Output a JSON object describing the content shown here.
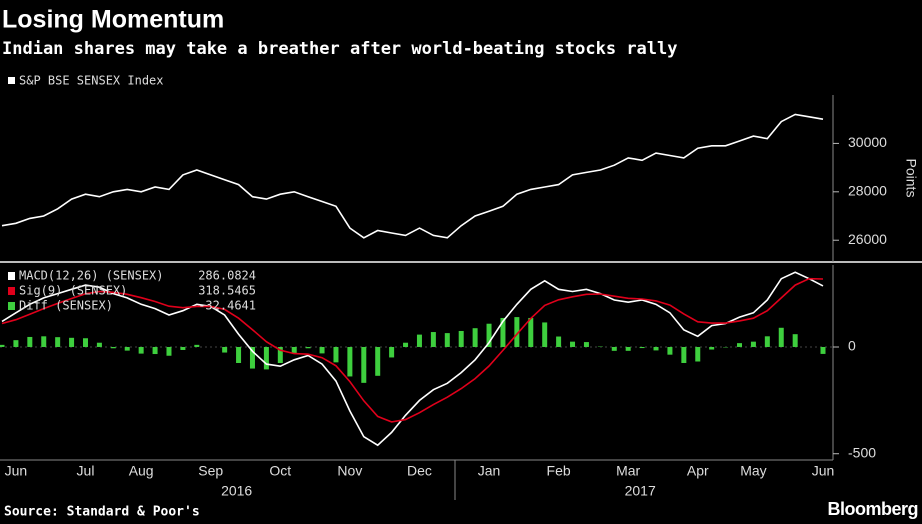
{
  "chart_data": [
    {
      "type": "line",
      "title": "Losing Momentum",
      "subtitle": "Indian shares may take a breather after world-beating stocks rally",
      "categories": [
        null,
        "Jun",
        null,
        null,
        null,
        null,
        "Jul",
        null,
        null,
        null,
        "Aug",
        null,
        null,
        null,
        null,
        "Sep",
        null,
        null,
        null,
        null,
        "Oct",
        null,
        null,
        null,
        null,
        "Nov",
        null,
        null,
        null,
        null,
        "Dec",
        null,
        null,
        null,
        null,
        "Jan",
        null,
        null,
        null,
        null,
        "Feb",
        null,
        null,
        null,
        null,
        "Mar",
        null,
        null,
        null,
        null,
        "Apr",
        null,
        null,
        null,
        "May",
        null,
        null,
        null,
        null,
        "Jun"
      ],
      "years": [
        "2016",
        "2017"
      ],
      "series": [
        {
          "name": "S&P BSE SENSEX Index",
          "color": "#ffffff",
          "values": [
            26600,
            26700,
            26900,
            27000,
            27300,
            27700,
            27900,
            27800,
            28000,
            28100,
            28000,
            28200,
            28100,
            28700,
            28900,
            28700,
            28500,
            28300,
            27800,
            27700,
            27900,
            28000,
            27800,
            27600,
            27400,
            26500,
            26100,
            26400,
            26300,
            26200,
            26500,
            26200,
            26100,
            26600,
            27000,
            27200,
            27400,
            27900,
            28100,
            28200,
            28300,
            28700,
            28800,
            28900,
            29100,
            29400,
            29300,
            29600,
            29500,
            29400,
            29800,
            29900,
            29900,
            30100,
            30300,
            30200,
            30900,
            31200,
            31100,
            31000
          ]
        }
      ],
      "ylim": [
        25100,
        32000
      ],
      "yticks": [
        26000,
        28000,
        30000
      ],
      "ylabel": "Points",
      "source": "Source: Standard & Poor's",
      "brand": "Bloomberg"
    },
    {
      "type": "line",
      "series": [
        {
          "name": "MACD(12,26) (SENSEX)",
          "color": "#ffffff",
          "type": "line",
          "last_value": 286.0824,
          "values": [
            120,
            160,
            200,
            230,
            250,
            270,
            290,
            280,
            250,
            230,
            200,
            180,
            150,
            170,
            200,
            190,
            150,
            60,
            -20,
            -80,
            -90,
            -60,
            -40,
            -80,
            -160,
            -300,
            -420,
            -460,
            -400,
            -320,
            -250,
            -200,
            -170,
            -120,
            -60,
            20,
            120,
            200,
            270,
            310,
            270,
            260,
            270,
            250,
            220,
            210,
            220,
            200,
            160,
            80,
            50,
            100,
            110,
            140,
            160,
            220,
            320,
            350,
            320,
            286.0824
          ]
        },
        {
          "name": "Sig(9) (SENSEX)",
          "color": "#e0001b",
          "type": "line",
          "last_value": 318.5465,
          "values": [
            110,
            128,
            153,
            180,
            204,
            227,
            249,
            260,
            256,
            247,
            231,
            213,
            191,
            184,
            190,
            190,
            176,
            135,
            81,
            25,
            -15,
            -31,
            -34,
            -50,
            -88,
            -162,
            -252,
            -325,
            -351,
            -340,
            -308,
            -270,
            -235,
            -195,
            -148,
            -89,
            -16,
            60,
            134,
            195,
            221,
            235,
            247,
            248,
            238,
            228,
            225,
            216,
            196,
            155,
            118,
            112,
            112,
            122,
            135,
            170,
            230,
            290,
            320,
            318.5465
          ]
        },
        {
          "name": "Diff (SENSEX)",
          "color": "#3ecf3e",
          "type": "bar",
          "last_value": -32.4641,
          "values": [
            10,
            32,
            47,
            50,
            46,
            43,
            41,
            20,
            -6,
            -17,
            -31,
            -33,
            -41,
            -14,
            10,
            0,
            -26,
            -75,
            -101,
            -105,
            -75,
            -29,
            -6,
            -30,
            -72,
            -138,
            -168,
            -135,
            -49,
            20,
            58,
            70,
            65,
            75,
            88,
            109,
            136,
            140,
            136,
            115,
            49,
            25,
            23,
            2,
            -18,
            -18,
            -5,
            -16,
            -36,
            -75,
            -68,
            -12,
            -2,
            18,
            25,
            50,
            90,
            60,
            0,
            -32.4641
          ]
        }
      ],
      "ylim": [
        -520,
        370
      ],
      "yticks": [
        -500,
        0
      ]
    }
  ]
}
